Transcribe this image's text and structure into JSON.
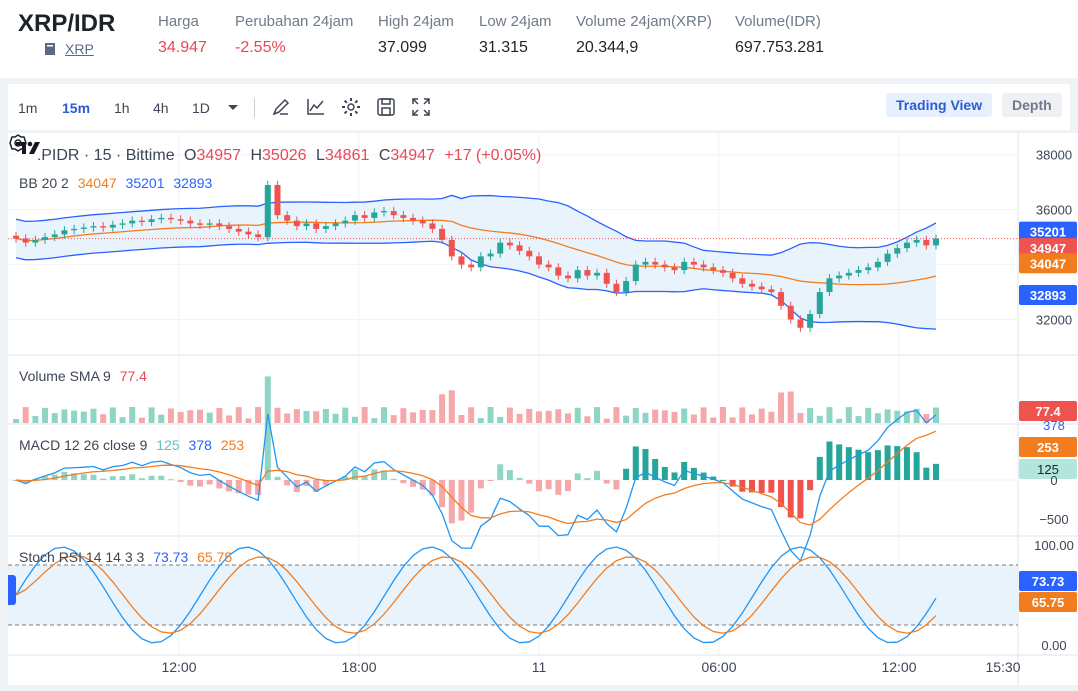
{
  "header": {
    "pair": "XRP/IDR",
    "coin_link": "XRP",
    "stats": [
      {
        "label": "Harga",
        "value": "34.947",
        "color": "red"
      },
      {
        "label": "Perubahan 24jam",
        "value": "-2.55%",
        "color": "red"
      },
      {
        "label": "High 24jam",
        "value": "37.099",
        "color": "dark"
      },
      {
        "label": "Low 24jam",
        "value": "31.315",
        "color": "dark"
      },
      {
        "label": "Volume 24jam(XRP)",
        "value": "20.344,9",
        "color": "dark"
      },
      {
        "label": "Volume(IDR)",
        "value": "697.753.281",
        "color": "dark"
      }
    ]
  },
  "toolbar": {
    "timeframes": [
      "1m",
      "15m",
      "1h",
      "4h",
      "1D"
    ],
    "active_timeframe": "15m",
    "icons": [
      "chevron-down-icon",
      "draw-icon",
      "indicator-icon",
      "gear-icon",
      "save-icon",
      "fullscreen-icon"
    ],
    "trading_view_label": "Trading View",
    "depth_label": "Depth"
  },
  "chart": {
    "title": "XRPIDR · 15 · Bittime",
    "ohlc": {
      "o_label": "O",
      "o": "34957",
      "h_label": "H",
      "h": "35026",
      "l_label": "L",
      "l": "34861",
      "c_label": "C",
      "c": "34947",
      "change": "+17 (+0.05%)"
    },
    "bb": {
      "label": "BB 20 2",
      "basis": "34047",
      "upper": "35201",
      "lower": "32893"
    },
    "volume": {
      "label": "Volume SMA 9",
      "value": "77.4"
    },
    "macd": {
      "label": "MACD 12 26 close 9",
      "hist": "125",
      "macd": "378",
      "signal": "253"
    },
    "stoch": {
      "label": "Stoch RSI 14 14 3 3",
      "k": "73.73",
      "d": "65.75"
    },
    "price_axis": [
      "38000",
      "36000",
      "32000"
    ],
    "price_tags": {
      "upper": "35201",
      "last": "34947",
      "basis": "34047",
      "lower": "32893"
    },
    "volume_tag": "77.4",
    "macd_axis": [
      "378",
      "253",
      "125",
      "0",
      "−500"
    ],
    "stoch_axis": [
      "100.00",
      "73.73",
      "65.75",
      "0.00"
    ],
    "time_axis": [
      "12:00",
      "18:00",
      "11",
      "06:00",
      "12:00",
      "15:30"
    ],
    "colors": {
      "up": "#26a69a",
      "down": "#ef5350",
      "bb": "#2962ff",
      "basis": "#f27d1f",
      "vol_up": "#8fd5c6",
      "vol_down": "#f4a8aa"
    }
  },
  "chart_data": {
    "type": "candlestick",
    "title": "XRPIDR · 15 · Bittime",
    "xlabel": "",
    "ylabel": "",
    "ylim": [
      31000,
      38500
    ],
    "x_ticks": [
      "12:00",
      "18:00",
      "11",
      "06:00",
      "12:00",
      "15:30"
    ],
    "close_series": [
      34950,
      34800,
      34900,
      35000,
      35100,
      35250,
      35300,
      35350,
      35400,
      35350,
      35450,
      35500,
      35600,
      35550,
      35650,
      35700,
      35650,
      35600,
      35500,
      35450,
      35500,
      35400,
      35300,
      35200,
      35100,
      35000,
      36900,
      35800,
      35600,
      35400,
      35500,
      35300,
      35400,
      35500,
      35600,
      35800,
      35700,
      35900,
      35950,
      35800,
      35700,
      35600,
      35500,
      35300,
      34900,
      34300,
      34000,
      33900,
      34300,
      34400,
      34800,
      34700,
      34500,
      34300,
      34000,
      33900,
      33600,
      33500,
      33800,
      33600,
      33700,
      33300,
      33000,
      33400,
      34000,
      34100,
      34000,
      33900,
      33800,
      34100,
      34000,
      33900,
      33800,
      33700,
      33500,
      33300,
      33200,
      33100,
      33000,
      32500,
      32000,
      31700,
      32200,
      33000,
      33500,
      33600,
      33700,
      33800,
      33900,
      34100,
      34400,
      34600,
      34800,
      34900,
      34700,
      34947
    ],
    "series": [
      {
        "name": "BB upper",
        "values": [
          35201
        ]
      },
      {
        "name": "BB basis",
        "values": [
          34047
        ]
      },
      {
        "name": "BB lower",
        "values": [
          32893
        ]
      }
    ]
  }
}
